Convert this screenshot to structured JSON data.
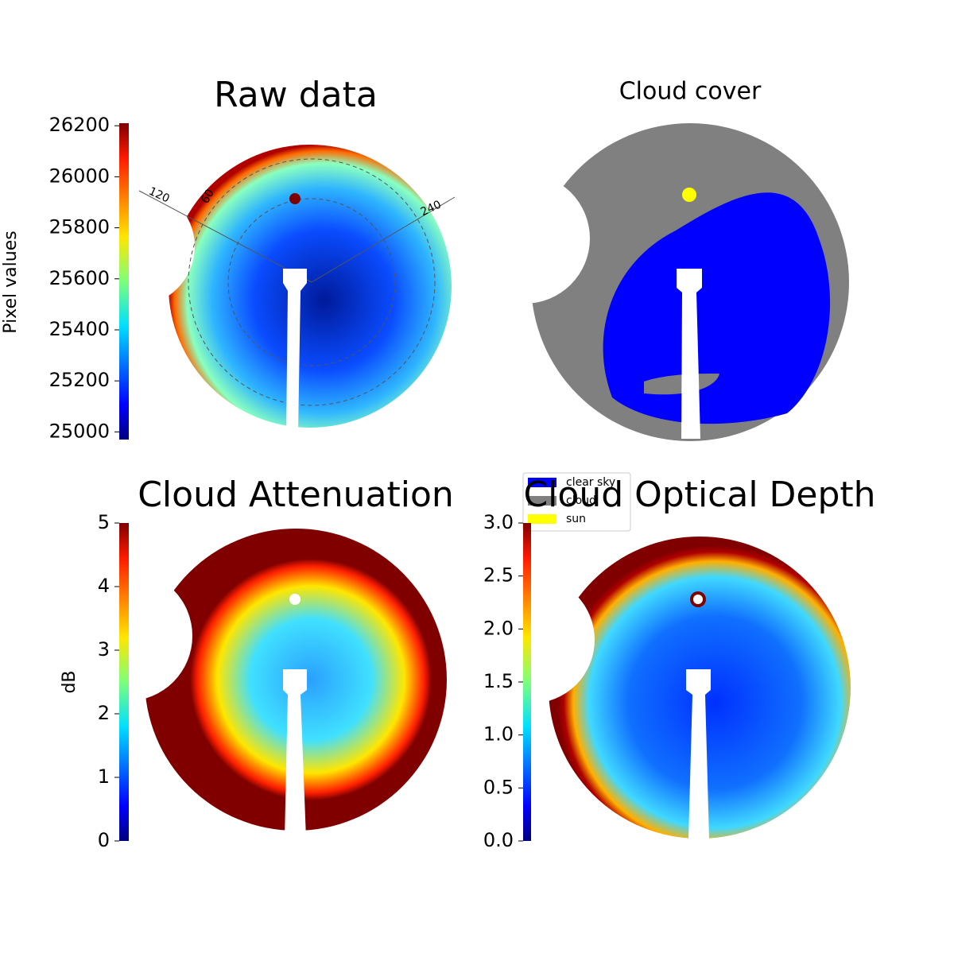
{
  "chart_data": [
    {
      "type": "image",
      "title": "Raw data",
      "colorbar_label": "Pixel values",
      "colormap": "jet",
      "ylim": [
        24970,
        26210
      ],
      "yticks": [
        25000,
        25200,
        25400,
        25600,
        25800,
        26000,
        26200
      ],
      "annotations": [
        "120",
        "60",
        "240"
      ]
    },
    {
      "type": "image",
      "title": "Cloud cover",
      "series": [
        {
          "name": "clear sky",
          "color": "#0000ff"
        },
        {
          "name": "cloud",
          "color": "#808080"
        },
        {
          "name": "sun",
          "color": "#ffff00"
        }
      ]
    },
    {
      "type": "image",
      "title": "Cloud Attenuation",
      "colorbar_label": "dB",
      "colormap": "jet",
      "ylim": [
        0,
        5
      ],
      "yticks": [
        0,
        1,
        2,
        3,
        4,
        5
      ]
    },
    {
      "type": "image",
      "title": "Cloud Optical Depth",
      "colormap": "jet",
      "ylim": [
        0,
        3
      ],
      "yticks": [
        {
          "value": 0,
          "label": "0.0"
        },
        0.5,
        {
          "value": 1,
          "label": "1.0"
        },
        1.5,
        {
          "value": 2,
          "label": "2.0"
        },
        2.5,
        {
          "value": 3,
          "label": "3.0"
        }
      ]
    }
  ]
}
